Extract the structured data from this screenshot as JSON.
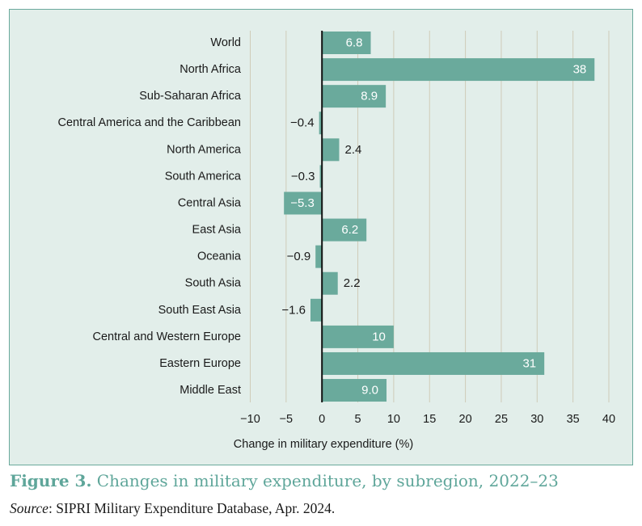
{
  "chart_data": {
    "type": "bar",
    "orientation": "horizontal",
    "categories": [
      "World",
      "North Africa",
      "Sub-Saharan Africa",
      "Central America and the Caribbean",
      "North America",
      "South America",
      "Central Asia",
      "East Asia",
      "Oceania",
      "South Asia",
      "South East Asia",
      "Central and Western Europe",
      "Eastern Europe",
      "Middle East"
    ],
    "values": [
      6.8,
      38,
      8.9,
      -0.4,
      2.4,
      -0.3,
      -5.3,
      6.2,
      -0.9,
      2.2,
      -1.6,
      10,
      31,
      9.0
    ],
    "value_labels": [
      "6.8",
      "38",
      "8.9",
      "−0.4",
      "2.4",
      "−0.3",
      "−5.3",
      "6.2",
      "−0.9",
      "2.2",
      "−1.6",
      "10",
      "31",
      "9.0"
    ],
    "xlim": [
      -10,
      40
    ],
    "xticks": [
      -10,
      -5,
      0,
      5,
      10,
      15,
      20,
      25,
      30,
      35,
      40
    ],
    "xtick_labels": [
      "−10",
      "−5",
      "0",
      "5",
      "10",
      "15",
      "20",
      "25",
      "30",
      "35",
      "40"
    ],
    "xlabel": "Change in military expenditure (%)",
    "ylabel": "",
    "grid": "vertical"
  },
  "colors": {
    "bar": "#6aaa9c",
    "panel_bg": "#e2eeea",
    "panel_border": "#6aa99c",
    "grid": "#cfcbb8",
    "zero_line": "#111111",
    "caption_title": "#5fa69a"
  },
  "caption": {
    "figure_label": "Figure 3.",
    "title": "Changes in military expenditure, by subregion, 2022–23",
    "source_label": "Source",
    "source_text": ": SIPRI Military Expenditure Database, Apr. 2024."
  }
}
